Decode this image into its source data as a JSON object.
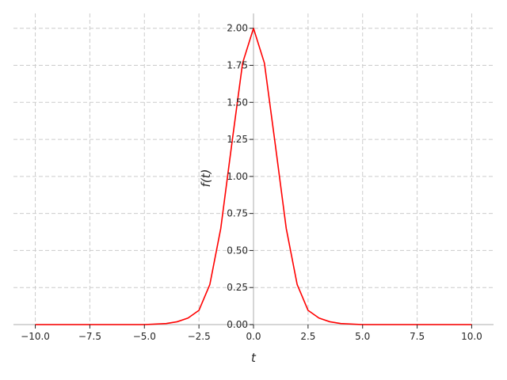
{
  "chart_data": {
    "type": "line",
    "xlabel": "t",
    "ylabel": "f(t)",
    "xlim": [
      -11.0,
      11.0
    ],
    "ylim": [
      0.0,
      2.1
    ],
    "xticks": [
      -10.0,
      -7.5,
      -5.0,
      -2.5,
      0.0,
      2.5,
      5.0,
      7.5,
      10.0
    ],
    "xtick_labels": [
      "−10.0",
      "−7.5",
      "−5.0",
      "−2.5",
      "0.0",
      "2.5",
      "5.0",
      "7.5",
      "10.0"
    ],
    "yticks": [
      0.0,
      0.25,
      0.5,
      0.75,
      1.0,
      1.25,
      1.5,
      1.75,
      2.0
    ],
    "ytick_labels": [
      "0.00",
      "0.25",
      "0.50",
      "0.75",
      "1.00",
      "1.25",
      "1.50",
      "1.75",
      "2.00"
    ],
    "grid": true,
    "spines": "centered at origin",
    "series": [
      {
        "color": "#ff0000",
        "x": [
          -10.0,
          -5.0,
          -4.0,
          -3.5,
          -3.0,
          -2.5,
          -2.0,
          -1.5,
          -1.0,
          -0.5,
          0.0,
          0.5,
          1.0,
          1.5,
          2.0,
          2.5,
          3.0,
          3.5,
          4.0,
          5.0,
          10.0
        ],
        "y": [
          0.0,
          0.0,
          0.007,
          0.019,
          0.044,
          0.096,
          0.271,
          0.649,
          1.213,
          1.765,
          2.0,
          1.765,
          1.213,
          0.649,
          0.271,
          0.096,
          0.044,
          0.019,
          0.007,
          0.0,
          0.0
        ]
      }
    ]
  }
}
